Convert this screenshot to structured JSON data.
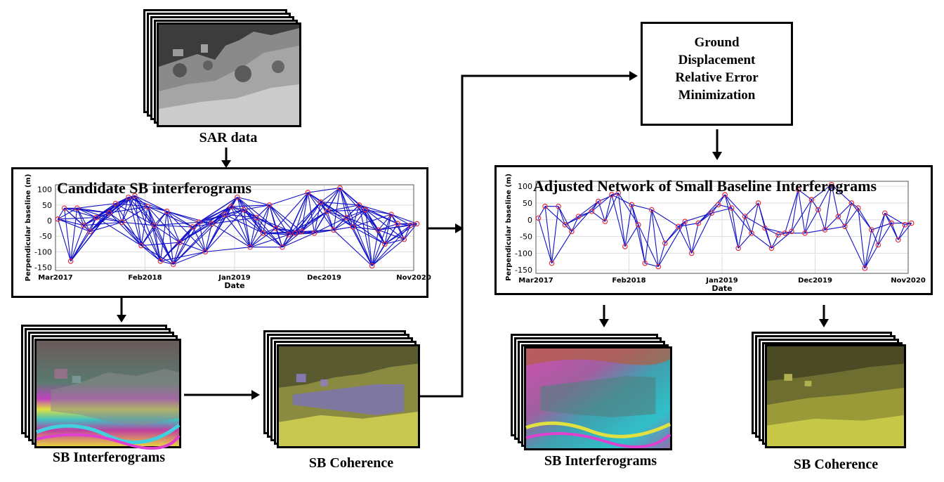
{
  "sar": {
    "caption": "SAR data"
  },
  "ground_box": {
    "lines": [
      "Ground",
      "Displacement",
      "Relative Error",
      "Minimization"
    ]
  },
  "left_outputs": {
    "interferograms": "SB Interferograms",
    "coherence": "SB Coherence"
  },
  "right_outputs": {
    "interferograms": "SB Interferograms",
    "coherence": "SB Coherence"
  },
  "chart_data": [
    {
      "type": "scatter",
      "title": "Candidate SB interferograms",
      "xlabel": "Date",
      "ylabel": "Perpendicular baseline (m)",
      "x_ticks": [
        "Mar2017",
        "Feb2018",
        "Jan2019",
        "Dec2019",
        "Nov2020"
      ],
      "y_ticks": [
        100,
        50,
        0,
        -50,
        -100,
        -150
      ],
      "xlim": [
        "2017-03",
        "2020-11"
      ],
      "ylim": [
        -160,
        115
      ],
      "grid": true,
      "network": "dense",
      "point_color": "#e03040",
      "edge_color": "#1010c8",
      "points": [
        {
          "x": "2017-03-10",
          "y": 5
        },
        {
          "x": "2017-04-03",
          "y": 40
        },
        {
          "x": "2017-04-27",
          "y": -130
        },
        {
          "x": "2017-05-21",
          "y": 40
        },
        {
          "x": "2017-06-14",
          "y": -15
        },
        {
          "x": "2017-07-08",
          "y": -35
        },
        {
          "x": "2017-08-01",
          "y": 10
        },
        {
          "x": "2017-09-18",
          "y": 25
        },
        {
          "x": "2017-10-12",
          "y": 55
        },
        {
          "x": "2017-11-05",
          "y": -5
        },
        {
          "x": "2017-11-29",
          "y": 75
        },
        {
          "x": "2017-12-23",
          "y": 80
        },
        {
          "x": "2018-01-16",
          "y": -80
        },
        {
          "x": "2018-02-09",
          "y": 45
        },
        {
          "x": "2018-03-05",
          "y": -15
        },
        {
          "x": "2018-03-29",
          "y": -130
        },
        {
          "x": "2018-04-22",
          "y": 30
        },
        {
          "x": "2018-05-16",
          "y": -140
        },
        {
          "x": "2018-06-09",
          "y": -70
        },
        {
          "x": "2018-07-27",
          "y": -20
        },
        {
          "x": "2018-08-20",
          "y": -5
        },
        {
          "x": "2018-09-13",
          "y": -100
        },
        {
          "x": "2018-10-07",
          "y": -10
        },
        {
          "x": "2018-11-24",
          "y": 20
        },
        {
          "x": "2018-12-18",
          "y": 45
        },
        {
          "x": "2019-01-11",
          "y": 75
        },
        {
          "x": "2019-02-04",
          "y": 35
        },
        {
          "x": "2019-02-28",
          "y": -85
        },
        {
          "x": "2019-03-24",
          "y": 10
        },
        {
          "x": "2019-04-17",
          "y": -40
        },
        {
          "x": "2019-05-11",
          "y": 50
        },
        {
          "x": "2019-06-04",
          "y": -25
        },
        {
          "x": "2019-06-28",
          "y": -85
        },
        {
          "x": "2019-07-22",
          "y": -45
        },
        {
          "x": "2019-08-15",
          "y": -40
        },
        {
          "x": "2019-09-08",
          "y": -35
        },
        {
          "x": "2019-10-02",
          "y": 90
        },
        {
          "x": "2019-10-26",
          "y": -40
        },
        {
          "x": "2019-11-19",
          "y": 60
        },
        {
          "x": "2019-12-13",
          "y": 30
        },
        {
          "x": "2020-01-06",
          "y": -30
        },
        {
          "x": "2020-01-30",
          "y": 105
        },
        {
          "x": "2020-02-23",
          "y": 10
        },
        {
          "x": "2020-03-18",
          "y": -20
        },
        {
          "x": "2020-04-11",
          "y": 50
        },
        {
          "x": "2020-05-05",
          "y": 35
        },
        {
          "x": "2020-05-29",
          "y": -145
        },
        {
          "x": "2020-06-22",
          "y": -30
        },
        {
          "x": "2020-07-16",
          "y": -75
        },
        {
          "x": "2020-08-09",
          "y": 20
        },
        {
          "x": "2020-09-02",
          "y": -10
        },
        {
          "x": "2020-09-26",
          "y": -60
        },
        {
          "x": "2020-10-20",
          "y": -15
        },
        {
          "x": "2020-11-13",
          "y": -10
        }
      ]
    },
    {
      "type": "scatter",
      "title": "Adjusted Network of Small Baseline Interferograms",
      "xlabel": "Date",
      "ylabel": "Perpendicular baseline (m)",
      "x_ticks": [
        "Mar2017",
        "Feb2018",
        "Jan2019",
        "Dec2019",
        "Nov2020"
      ],
      "y_ticks": [
        100,
        50,
        0,
        -50,
        -100,
        -150
      ],
      "xlim": [
        "2017-03",
        "2020-11"
      ],
      "ylim": [
        -160,
        115
      ],
      "grid": true,
      "network": "sparse",
      "point_color": "#e03040",
      "edge_color": "#1010c8"
    }
  ]
}
